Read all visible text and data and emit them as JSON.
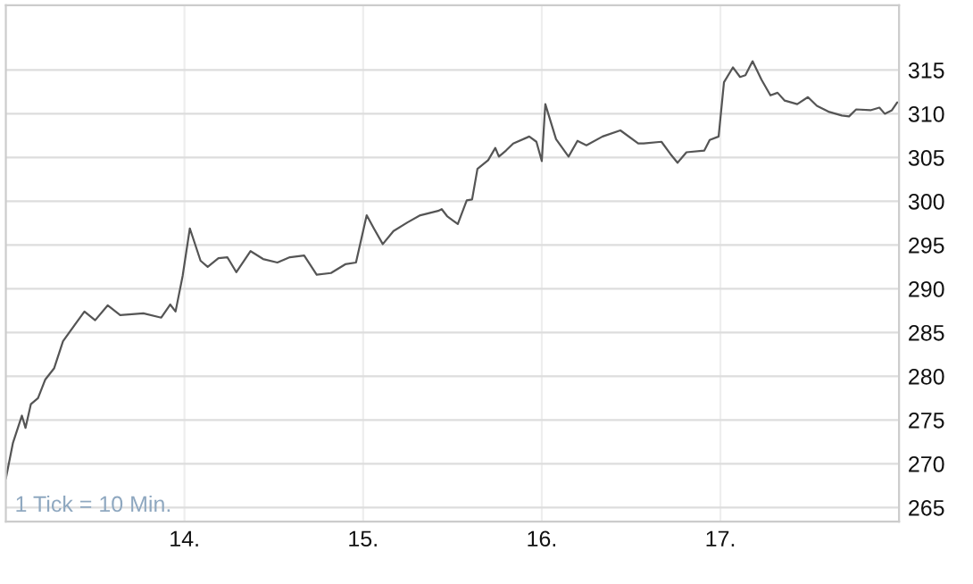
{
  "chart_data": {
    "type": "line",
    "series": [
      {
        "color": "#555555",
        "x": [
          13.0,
          13.04,
          13.09,
          13.11,
          13.14,
          13.18,
          13.22,
          13.27,
          13.32,
          13.39,
          13.44,
          13.5,
          13.57,
          13.64,
          13.77,
          13.87,
          13.92,
          13.95,
          13.99,
          14.03,
          14.09,
          14.13,
          14.19,
          14.24,
          14.29,
          14.37,
          14.44,
          14.52,
          14.59,
          14.67,
          14.74,
          14.82,
          14.9,
          14.96,
          15.02,
          15.06,
          15.11,
          15.17,
          15.25,
          15.32,
          15.42,
          15.44,
          15.47,
          15.53,
          15.58,
          15.61,
          15.64,
          15.7,
          15.74,
          15.76,
          15.8,
          15.84,
          15.93,
          15.97,
          16.0,
          16.02,
          16.08,
          16.15,
          16.2,
          16.25,
          16.34,
          16.44,
          16.54,
          16.57,
          16.67,
          16.72,
          16.76,
          16.81,
          16.91,
          16.94,
          16.99,
          17.02,
          17.07,
          17.11,
          17.14,
          17.18,
          17.23,
          17.28,
          17.32,
          17.36,
          17.43,
          17.49,
          17.54,
          17.61,
          17.68,
          17.72,
          17.76,
          17.84,
          17.89,
          17.92,
          17.96,
          17.99
        ],
        "values": [
          268.3,
          272.4,
          275.5,
          274.1,
          276.8,
          277.5,
          279.6,
          280.9,
          284.0,
          286.0,
          287.4,
          286.4,
          288.1,
          287.0,
          287.2,
          286.7,
          288.2,
          287.4,
          291.5,
          296.9,
          293.2,
          292.5,
          293.5,
          293.6,
          291.9,
          294.3,
          293.4,
          293.0,
          293.6,
          293.8,
          291.6,
          291.8,
          292.8,
          293.0,
          298.4,
          296.9,
          295.1,
          296.6,
          297.6,
          298.4,
          298.9,
          299.1,
          298.3,
          297.4,
          300.1,
          300.2,
          303.7,
          304.7,
          306.1,
          305.1,
          305.8,
          306.6,
          307.4,
          306.8,
          304.6,
          311.1,
          307.1,
          305.1,
          306.9,
          306.4,
          307.4,
          308.1,
          306.6,
          306.6,
          306.8,
          305.4,
          304.4,
          305.6,
          305.8,
          307.0,
          307.4,
          313.6,
          315.3,
          314.2,
          314.4,
          316.0,
          313.9,
          312.1,
          312.4,
          311.5,
          311.1,
          311.9,
          310.9,
          310.2,
          309.8,
          309.7,
          310.5,
          310.4,
          310.7,
          310.0,
          310.4,
          311.3
        ]
      }
    ],
    "xlim": [
      13.0,
      18.0
    ],
    "xticks": [
      {
        "value": 14,
        "label": "14."
      },
      {
        "value": 15,
        "label": "15."
      },
      {
        "value": 16,
        "label": "16."
      },
      {
        "value": 17,
        "label": "17."
      }
    ],
    "ylim": [
      263.4,
      322.4
    ],
    "yticks": [
      265,
      270,
      275,
      280,
      285,
      290,
      295,
      300,
      305,
      310,
      315
    ],
    "grid": true,
    "annotations": [
      "1 Tick = 10 Min."
    ]
  }
}
